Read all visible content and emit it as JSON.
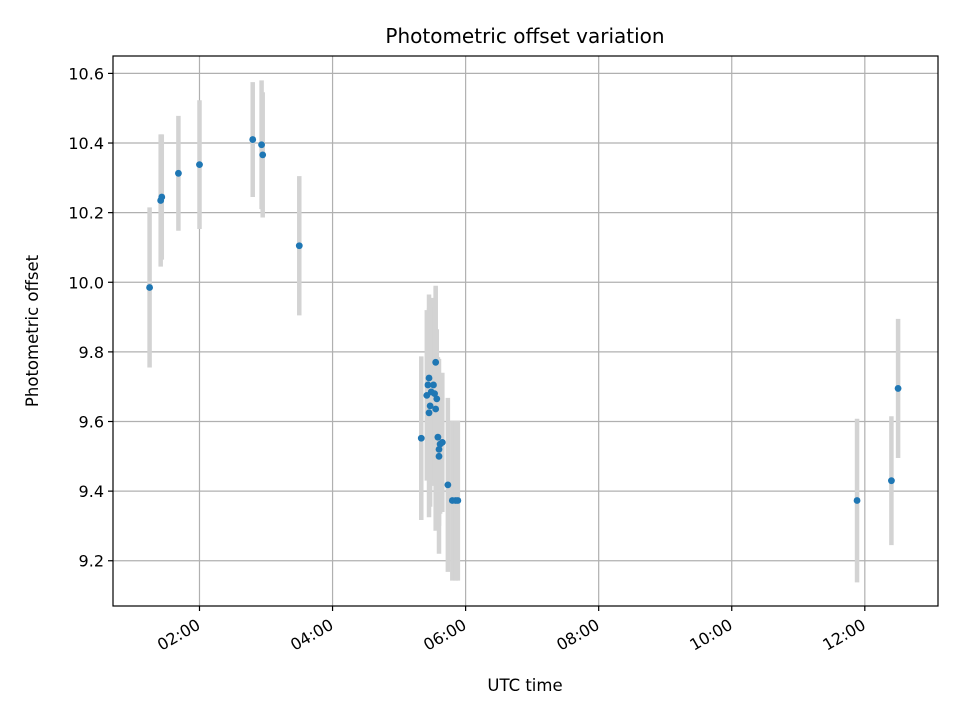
{
  "chart_data": {
    "type": "scatter",
    "title": "Photometric offset variation",
    "xlabel": "UTC time",
    "ylabel": "Photometric offset",
    "x_unit": "UTC hours",
    "xlim": [
      "00:42",
      "13:06"
    ],
    "ylim": [
      9.07,
      10.65
    ],
    "grid": true,
    "x_ticks": [
      "02:00",
      "04:00",
      "06:00",
      "08:00",
      "10:00",
      "12:00"
    ],
    "y_ticks": [
      "9.2",
      "9.4",
      "9.6",
      "9.8",
      "10.0",
      "10.2",
      "10.4",
      "10.6"
    ],
    "colors": {
      "point": "#1f77b4",
      "error_bar": "#d3d3d3",
      "grid": "#b0b0b0"
    },
    "points": [
      {
        "x": "01:15",
        "y": 9.985,
        "err": 0.23
      },
      {
        "x": "01:25",
        "y": 10.235,
        "err": 0.19
      },
      {
        "x": "01:26",
        "y": 10.245,
        "err": 0.18
      },
      {
        "x": "01:41",
        "y": 10.313,
        "err": 0.165
      },
      {
        "x": "02:00",
        "y": 10.338,
        "err": 0.185
      },
      {
        "x": "02:48",
        "y": 10.41,
        "err": 0.165
      },
      {
        "x": "02:56",
        "y": 10.395,
        "err": 0.185
      },
      {
        "x": "02:57",
        "y": 10.366,
        "err": 0.18
      },
      {
        "x": "03:30",
        "y": 10.105,
        "err": 0.2
      },
      {
        "x": "05:20",
        "y": 9.552,
        "err": 0.235
      },
      {
        "x": "05:25",
        "y": 9.675,
        "err": 0.245
      },
      {
        "x": "05:26",
        "y": 9.705,
        "err": 0.21
      },
      {
        "x": "05:27",
        "y": 9.725,
        "err": 0.24
      },
      {
        "x": "05:27",
        "y": 9.625,
        "err": 0.3
      },
      {
        "x": "05:28",
        "y": 9.645,
        "err": 0.29
      },
      {
        "x": "05:29",
        "y": 9.685,
        "err": 0.27
      },
      {
        "x": "05:31",
        "y": 9.705,
        "err": 0.22
      },
      {
        "x": "05:32",
        "y": 9.68,
        "err": 0.25
      },
      {
        "x": "05:33",
        "y": 9.77,
        "err": 0.22
      },
      {
        "x": "05:33",
        "y": 9.636,
        "err": 0.35
      },
      {
        "x": "05:34",
        "y": 9.665,
        "err": 0.2
      },
      {
        "x": "05:35",
        "y": 9.555,
        "err": 0.23
      },
      {
        "x": "05:36",
        "y": 9.52,
        "err": 0.22
      },
      {
        "x": "05:36",
        "y": 9.5,
        "err": 0.28
      },
      {
        "x": "05:37",
        "y": 9.535,
        "err": 0.2
      },
      {
        "x": "05:39",
        "y": 9.54,
        "err": 0.2
      },
      {
        "x": "05:44",
        "y": 9.418,
        "err": 0.25
      },
      {
        "x": "05:48",
        "y": 9.373,
        "err": 0.23
      },
      {
        "x": "05:51",
        "y": 9.373,
        "err": 0.23
      },
      {
        "x": "05:53",
        "y": 9.373,
        "err": 0.23
      },
      {
        "x": "11:53",
        "y": 9.373,
        "err": 0.235
      },
      {
        "x": "12:24",
        "y": 9.43,
        "err": 0.185
      },
      {
        "x": "12:30",
        "y": 9.695,
        "err": 0.2
      }
    ]
  }
}
